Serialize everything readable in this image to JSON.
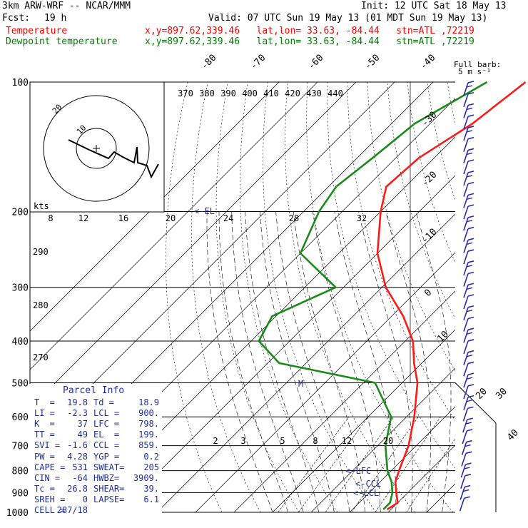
{
  "header": {
    "model": "3km ARW-WRF -- NCAR/MMM",
    "init": "Init: 12 UTC Sat 18 May 13",
    "fcst_label": "Fcst:",
    "fcst_value": "19 h",
    "valid": "Valid: 07 UTC Sun 19 May 13 (01 MDT Sun 19 May 13)",
    "temp_label": "Temperature",
    "temp_info": "x,y=897.62,339.46   lat,lon= 33.63, -84.44   stn=ATL ,72219",
    "dew_label": "Dewpoint temperature",
    "dew_info": "x,y=897.62,339.46   lat,lon= 33.63, -84.44   stn=ATL ,72219"
  },
  "colors": {
    "temperature": "#ff1a1a",
    "dewpoint": "#1a8a1a",
    "parcel_text": "#1f2fa0",
    "barbs": "#2a2ab0",
    "header_red": "#ff0000",
    "header_green": "#008000",
    "black": "#000000"
  },
  "barb_legend": {
    "title": "Full barb:",
    "value": "5 m s⁻¹"
  },
  "hodograph": {
    "units": "kts",
    "ring_labels": [
      "10",
      "20"
    ]
  },
  "annotations": {
    "el": "EL",
    "lfc": "LFC",
    "ccl": "CCL",
    "lcl": "LCL",
    "m": "M"
  },
  "parcel_info": {
    "title": "Parcel Info",
    "rows": [
      [
        "T  =",
        "19.8",
        "Td =",
        "18.9"
      ],
      [
        "LI =",
        "-2.3",
        "LCL =",
        "900."
      ],
      [
        "K  =",
        "37",
        "LFC =",
        "798."
      ],
      [
        "TT =",
        "49",
        "EL  =",
        "199."
      ],
      [
        "SVI =",
        "-1.6",
        "CCL =",
        "859."
      ],
      [
        "PW =",
        "4.28",
        "YGP =",
        "0.2"
      ],
      [
        "CAPE =",
        "531",
        "SWEAT=",
        "205"
      ],
      [
        "CIN =",
        "-64",
        "HWBZ=",
        "3909."
      ],
      [
        "Tc =",
        "26.8",
        "SHEAR=",
        "39."
      ],
      [
        "SREH =",
        "0",
        "LAPSE=",
        "6.1"
      ],
      [
        "CELL =",
        "287/18",
        "",
        ""
      ]
    ]
  },
  "chart_data": {
    "type": "line",
    "chart": "Skew-T log-P sounding",
    "pressure_levels": [
      100,
      200,
      300,
      400,
      500,
      600,
      700,
      800,
      900,
      1000
    ],
    "isotherm_labels": [
      -80,
      -70,
      -60,
      -50,
      -40,
      -30,
      -20,
      -10,
      0,
      10,
      20,
      30,
      40
    ],
    "theta_labels": [
      370,
      380,
      390,
      400,
      410,
      420,
      430,
      440
    ],
    "theta_left_labels": [
      290,
      280,
      270
    ],
    "mixing_ratio_labels": [
      2,
      3,
      5,
      8,
      12,
      20
    ],
    "hodo_speed_labels": [
      8,
      12,
      16,
      20,
      24,
      28,
      32
    ],
    "series": [
      {
        "name": "Temperature",
        "points": [
          [
            100,
            -56
          ],
          [
            125,
            -59
          ],
          [
            150,
            -64
          ],
          [
            175,
            -65
          ],
          [
            200,
            -60
          ],
          [
            250,
            -50
          ],
          [
            300,
            -39
          ],
          [
            350,
            -27
          ],
          [
            400,
            -18
          ],
          [
            450,
            -12
          ],
          [
            500,
            -6
          ],
          [
            600,
            2
          ],
          [
            700,
            8
          ],
          [
            800,
            12
          ],
          [
            850,
            14
          ],
          [
            900,
            17
          ],
          [
            950,
            20
          ],
          [
            985,
            19
          ]
        ]
      },
      {
        "name": "Dewpoint temperature",
        "points": [
          [
            100,
            -66
          ],
          [
            125,
            -74
          ],
          [
            150,
            -76
          ],
          [
            175,
            -78
          ],
          [
            200,
            -76
          ],
          [
            250,
            -70
          ],
          [
            300,
            -52
          ],
          [
            350,
            -61
          ],
          [
            400,
            -58
          ],
          [
            450,
            -47
          ],
          [
            500,
            -17
          ],
          [
            600,
            -4
          ],
          [
            700,
            2
          ],
          [
            800,
            9
          ],
          [
            850,
            13
          ],
          [
            900,
            16
          ],
          [
            950,
            18
          ],
          [
            985,
            18
          ]
        ]
      }
    ],
    "wind_barb_count": 38,
    "xlabel": "",
    "ylabel": ""
  }
}
